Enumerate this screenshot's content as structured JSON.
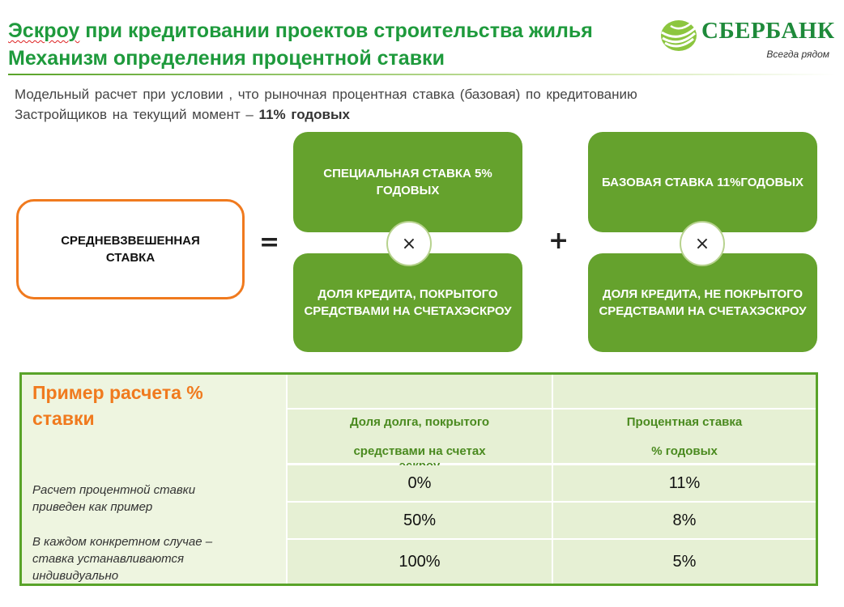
{
  "header": {
    "title_part1": "Эскроу",
    "title_part2": " при кредитовании проектов строительства жилья",
    "title_line2": "Механизм определения процентной ставки"
  },
  "logo": {
    "name": "СБЕРБАНК",
    "slogan": "Всегда рядом",
    "colors": {
      "green": "#1e8a3a",
      "light_green": "#8cc63f"
    }
  },
  "intro": {
    "text_line1": "Модельный расчет при условии , что рыночная процентная ставка (базовая) по кредитованию",
    "text_line2": "Застройщиков на текущий момент – ",
    "bold": "11% годовых"
  },
  "formula": {
    "result_label": "СРЕДНЕВЗВЕШЕННАЯ СТАВКА",
    "equals": "=",
    "plus": "+",
    "times": "×",
    "special_rate": "СПЕЦИАЛЬНАЯ СТАВКА 5% ГОДОВЫХ",
    "covered_share": "ДОЛЯ КРЕДИТА, ПОКРЫТОГО СРЕДСТВАМИ НА СЧЕТАХЭСКРОУ",
    "base_rate": "БАЗОВАЯ СТАВКА 11%ГОДОВЫХ",
    "uncovered_share": "ДОЛЯ КРЕДИТА, НЕ ПОКРЫТОГО СРЕДСТВАМИ НА СЧЕТАХЭСКРОУ",
    "colors": {
      "box_green": "#65a22d",
      "accent_orange": "#f07a1e"
    }
  },
  "example": {
    "title": "Пример расчета % ставки",
    "note1": "Расчет процентной ставки приведен как пример",
    "note2": "В каждом конкретном случае – ставка устанавливаются индивидуально",
    "col1_header_line1": "Доля долга, покрытого",
    "col1_header_line2_part1": "средствами на счетах ",
    "col1_header_line2_part2": "эскроу",
    "col2_header_line1": "Процентная ставка",
    "col2_header_line2": "% годовых",
    "rows": [
      {
        "share": "0%",
        "rate": "11%"
      },
      {
        "share": "50%",
        "rate": "8%"
      },
      {
        "share": "100%",
        "rate": "5%"
      }
    ]
  }
}
